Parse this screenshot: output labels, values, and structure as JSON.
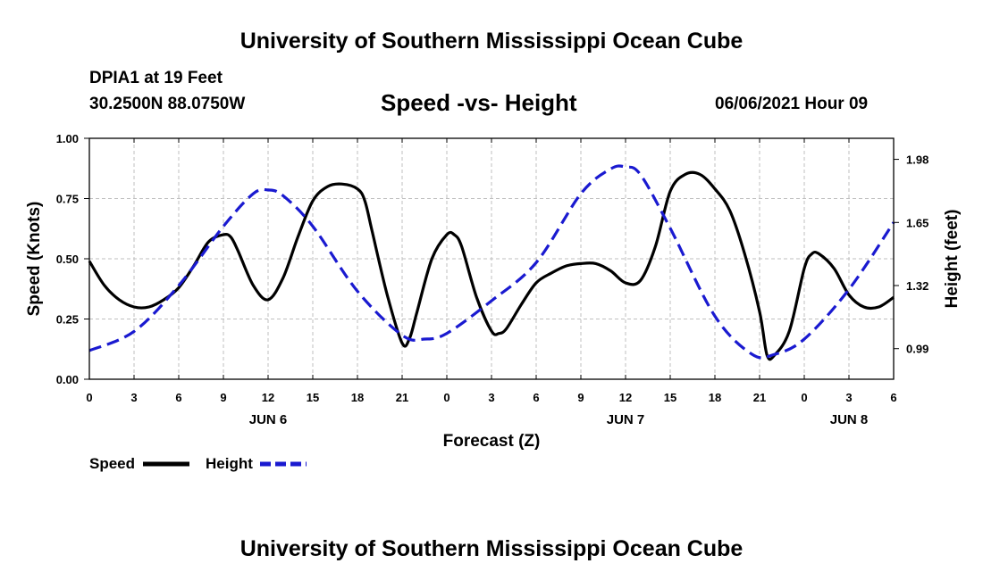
{
  "header": {
    "title": "University of Southern Mississippi Ocean Cube",
    "station": "DPIA1 at 19 Feet",
    "coords": "30.2500N  88.0750W",
    "subtitle": "Speed -vs- Height",
    "datetime": "06/06/2021 Hour 09",
    "footer_title": "University of Southern Mississippi Ocean Cube"
  },
  "legend": {
    "speed_label": "Speed",
    "height_label": "Height"
  },
  "colors": {
    "speed": "#000000",
    "height": "#1a1ad0",
    "grid": "#bfbfbf"
  },
  "chart_data": {
    "type": "line",
    "xlabel": "Forecast (Z)",
    "ylabel_left": "Speed (Knots)",
    "ylabel_right": "Height (feet)",
    "xlim": [
      0,
      54
    ],
    "ylim_left": [
      0,
      1.0
    ],
    "ylim_right": [
      0.83,
      2.09
    ],
    "x_ticks": [
      0,
      3,
      6,
      9,
      12,
      15,
      18,
      21,
      24,
      27,
      30,
      33,
      36,
      39,
      42,
      45,
      48,
      51,
      54
    ],
    "x_tick_labels": [
      "0",
      "3",
      "6",
      "9",
      "12",
      "15",
      "18",
      "21",
      "0",
      "3",
      "6",
      "9",
      "12",
      "15",
      "18",
      "21",
      "0",
      "3",
      "6"
    ],
    "y_ticks_left": [
      0.0,
      0.25,
      0.5,
      0.75,
      1.0
    ],
    "y_tick_labels_left": [
      "0.00",
      "0.25",
      "0.50",
      "0.75",
      "1.00"
    ],
    "y_ticks_right": [
      0.99,
      1.32,
      1.65,
      1.98
    ],
    "y_tick_labels_right": [
      "0.99",
      "1.32",
      "1.65",
      "1.98"
    ],
    "day_labels": [
      {
        "x": 12,
        "label": "JUN 6"
      },
      {
        "x": 36,
        "label": "JUN 7"
      },
      {
        "x": 51,
        "label": "JUN 8"
      }
    ],
    "grid": true,
    "series": [
      {
        "name": "Speed",
        "axis": "left",
        "style": "solid",
        "x": [
          0,
          1,
          2,
          3,
          4,
          5,
          6,
          7,
          8,
          9,
          9.5,
          10,
          11,
          12,
          13,
          14,
          15,
          16,
          17,
          18,
          18.5,
          19,
          20,
          21,
          21.5,
          22,
          23,
          24,
          24.5,
          25,
          26,
          27,
          27.5,
          28,
          29,
          30,
          31,
          32,
          33,
          34,
          35,
          36,
          37,
          38,
          39,
          40,
          41,
          42,
          43,
          44,
          45,
          45.5,
          46,
          47,
          48,
          48.5,
          49,
          50,
          51,
          52,
          53,
          54
        ],
        "values": [
          0.49,
          0.39,
          0.33,
          0.3,
          0.3,
          0.33,
          0.38,
          0.47,
          0.57,
          0.6,
          0.59,
          0.53,
          0.39,
          0.33,
          0.42,
          0.59,
          0.74,
          0.8,
          0.81,
          0.79,
          0.74,
          0.61,
          0.35,
          0.15,
          0.17,
          0.28,
          0.5,
          0.6,
          0.6,
          0.55,
          0.34,
          0.2,
          0.19,
          0.21,
          0.31,
          0.4,
          0.44,
          0.47,
          0.48,
          0.48,
          0.45,
          0.4,
          0.41,
          0.55,
          0.78,
          0.85,
          0.85,
          0.79,
          0.7,
          0.52,
          0.28,
          0.1,
          0.1,
          0.2,
          0.46,
          0.52,
          0.52,
          0.46,
          0.35,
          0.3,
          0.3,
          0.34
        ]
      },
      {
        "name": "Height",
        "axis": "right",
        "style": "dashed",
        "x": [
          0,
          3,
          6,
          9,
          11,
          12,
          13,
          15,
          18,
          21,
          22.5,
          24,
          27,
          30,
          33,
          35,
          36,
          37,
          39,
          42,
          44.5,
          46,
          48,
          51,
          54
        ],
        "values": [
          0.98,
          1.08,
          1.32,
          1.63,
          1.8,
          1.82,
          1.79,
          1.63,
          1.29,
          1.06,
          1.04,
          1.07,
          1.24,
          1.44,
          1.8,
          1.93,
          1.94,
          1.9,
          1.62,
          1.16,
          0.96,
          0.96,
          1.04,
          1.3,
          1.65
        ]
      }
    ]
  }
}
